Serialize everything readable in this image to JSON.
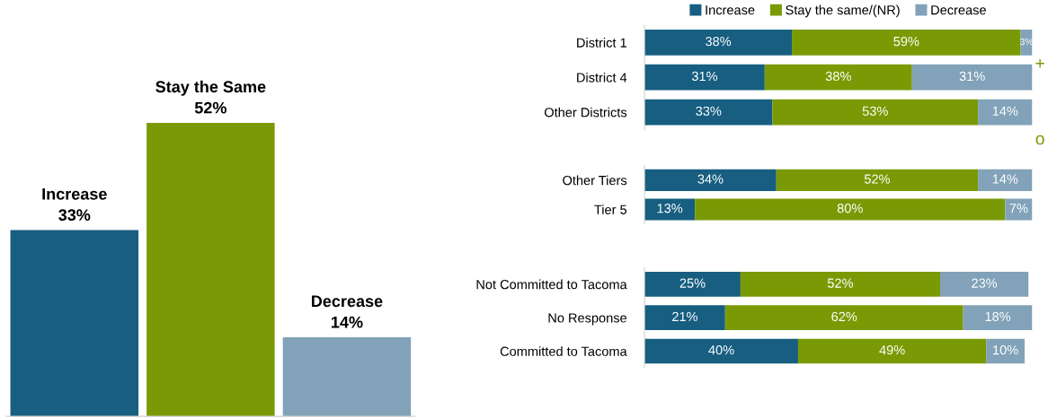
{
  "chart_data": [
    {
      "type": "bar",
      "categories": [
        null,
        null,
        null
      ],
      "values": [
        33,
        52,
        14
      ],
      "colors": [
        "#175e80",
        "#7a9a05",
        "#81a2b8"
      ],
      "value_labels": [
        "Increase\n33%",
        "Stay the Same\n52%",
        "Decrease\n14%"
      ],
      "grid": false
    },
    {
      "type": "bar",
      "orientation": "horizontal",
      "stacked": true,
      "categories": [
        "District 1",
        "District 4",
        "Other Districts"
      ],
      "legend": "top",
      "grid": false,
      "annotations": [
        "+",
        "o"
      ],
      "series": [
        {
          "name": "Increase",
          "color": "#175e80",
          "values": [
            38,
            31,
            33
          ],
          "value_labels": [
            "38%",
            "31%",
            "33%"
          ]
        },
        {
          "name": "Stay the same/(NR)",
          "color": "#7a9a05",
          "values": [
            59,
            38,
            53
          ],
          "value_labels": [
            "59%",
            "38%",
            "53%"
          ]
        },
        {
          "name": "Decrease",
          "color": "#81a2b8",
          "values": [
            3,
            31,
            14
          ],
          "value_labels": [
            "3%",
            "31%",
            "14%"
          ]
        }
      ]
    },
    {
      "type": "bar",
      "orientation": "horizontal",
      "stacked": true,
      "categories": [
        "Other Tiers",
        "Tier 5"
      ],
      "grid": false,
      "series": [
        {
          "color": "#175e80",
          "values": [
            34,
            13
          ],
          "value_labels": [
            "34%",
            "13%"
          ]
        },
        {
          "color": "#7a9a05",
          "values": [
            52,
            80
          ],
          "value_labels": [
            "52%",
            "80%"
          ]
        },
        {
          "color": "#81a2b8",
          "values": [
            14,
            7
          ],
          "value_labels": [
            "14%",
            "7%"
          ]
        }
      ]
    },
    {
      "type": "bar",
      "orientation": "horizontal",
      "stacked": true,
      "categories": [
        "Not Committed to Tacoma",
        "No Response",
        "Committed to Tacoma"
      ],
      "grid": false,
      "series": [
        {
          "color": "#175e80",
          "values": [
            25,
            21,
            40
          ],
          "value_labels": [
            "25%",
            "21%",
            "40%"
          ]
        },
        {
          "color": "#7a9a05",
          "values": [
            52,
            62,
            49
          ],
          "value_labels": [
            "52%",
            "62%",
            "49%"
          ]
        },
        {
          "color": "#81a2b8",
          "values": [
            23,
            18,
            10
          ],
          "value_labels": [
            "23%",
            "18%",
            "10%"
          ]
        }
      ]
    }
  ]
}
